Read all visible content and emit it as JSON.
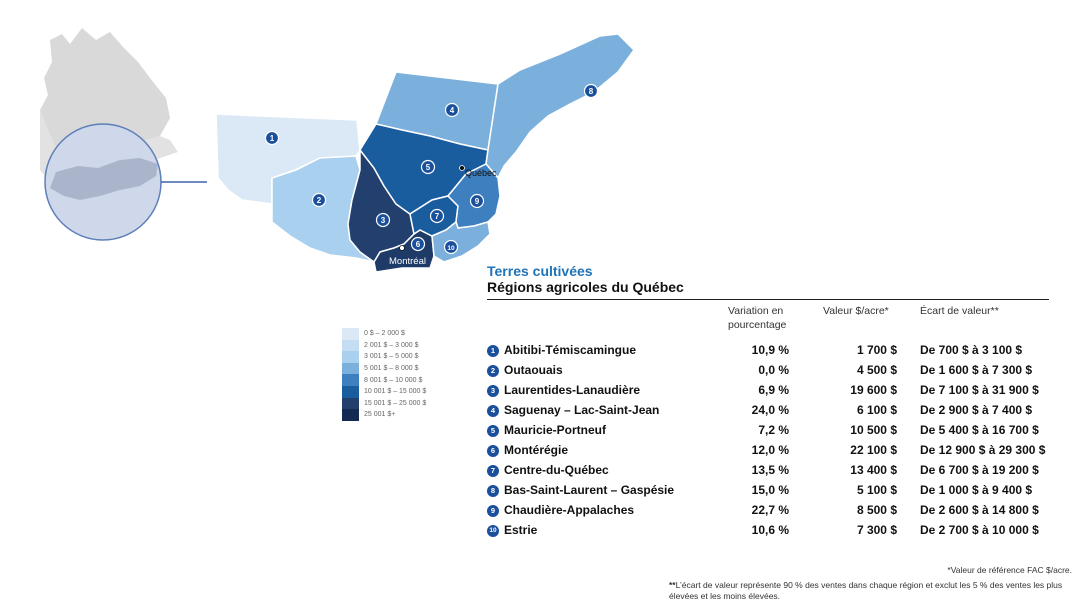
{
  "title": "Terres cultivées",
  "subtitle": "Régions agricoles du Québec",
  "headers": {
    "variation": "Variation en pourcentage",
    "valeur": "Valeur $/acre*",
    "ecart": "Écart de valeur**"
  },
  "regions": [
    {
      "num": "1",
      "name": "Abitibi-Témiscamingue",
      "variation": "10,9 %",
      "valeur": "1 700 $",
      "ecart": "De 700 $ à 3 100 $",
      "color": "#dbe9f6"
    },
    {
      "num": "2",
      "name": "Outaouais",
      "variation": "0,0 %",
      "valeur": "4 500 $",
      "ecart": "De 1 600 $ à 7 300 $",
      "color": "#a9d0ee"
    },
    {
      "num": "3",
      "name": "Laurentides-Lanaudière",
      "variation": "6,9 %",
      "valeur": "19 600 $",
      "ecart": "De 7 100 $ à 31 900 $",
      "color": "#223f6e"
    },
    {
      "num": "4",
      "name": "Saguenay – Lac-Saint-Jean",
      "variation": "24,0 %",
      "valeur": "6 100 $",
      "ecart": "De 2 900 $ à 7 400 $",
      "color": "#7bb0dc"
    },
    {
      "num": "5",
      "name": "Mauricie-Portneuf",
      "variation": "7,2 %",
      "valeur": "10 500 $",
      "ecart": "De 5 400 $ à 16 700 $",
      "color": "#1a5d9f"
    },
    {
      "num": "6",
      "name": "Montérégie",
      "variation": "12,0 %",
      "valeur": "22 100 $",
      "ecart": "De 12 900 $ à 29 300 $",
      "color": "#1e3b68"
    },
    {
      "num": "7",
      "name": "Centre-du-Québec",
      "variation": "13,5 %",
      "valeur": "13 400 $",
      "ecart": "De 6 700 $ à 19 200 $",
      "color": "#1a5d9f"
    },
    {
      "num": "8",
      "name": "Bas-Saint-Laurent – Gaspésie",
      "variation": "15,0 %",
      "valeur": "5 100 $",
      "ecart": "De 1 000 $ à 9 400 $",
      "color": "#7bb0dc"
    },
    {
      "num": "9",
      "name": "Chaudière-Appalaches",
      "variation": "22,7 %",
      "valeur": "8 500 $",
      "ecart": "De 2 600 $ à 14 800 $",
      "color": "#3d7fbf"
    },
    {
      "num": "10",
      "name": "Estrie",
      "variation": "10,6 %",
      "valeur": "7 300 $",
      "ecart": "De 2 700 $ à 10 000 $",
      "color": "#7bb0dc"
    }
  ],
  "legend": [
    {
      "label": "0 $ – 2 000 $",
      "color": "#dbe9f6"
    },
    {
      "label": "2 001 $ – 3 000 $",
      "color": "#c4ddf2"
    },
    {
      "label": "3 001 $ – 5 000 $",
      "color": "#a9d0ee"
    },
    {
      "label": "5 001 $ – 8 000 $",
      "color": "#7bb0dc"
    },
    {
      "label": "8 001 $ – 10 000 $",
      "color": "#3d7fbf"
    },
    {
      "label": "10 001 $ – 15 000 $",
      "color": "#1a5d9f"
    },
    {
      "label": "15 001 $ – 25 000 $",
      "color": "#223f6e"
    },
    {
      "label": "25 001 $+",
      "color": "#132a52"
    }
  ],
  "city_labels": {
    "quebec": "Québec",
    "montreal": "Montréal"
  },
  "notes": {
    "note1": "*Valeur de référence FAC $/acre.",
    "note2_mark": "**",
    "note2": "L’écart de valeur représente 90 % des ventes dans chaque région et exclut les 5 % des ventes les plus élevées et les moins élevées."
  }
}
